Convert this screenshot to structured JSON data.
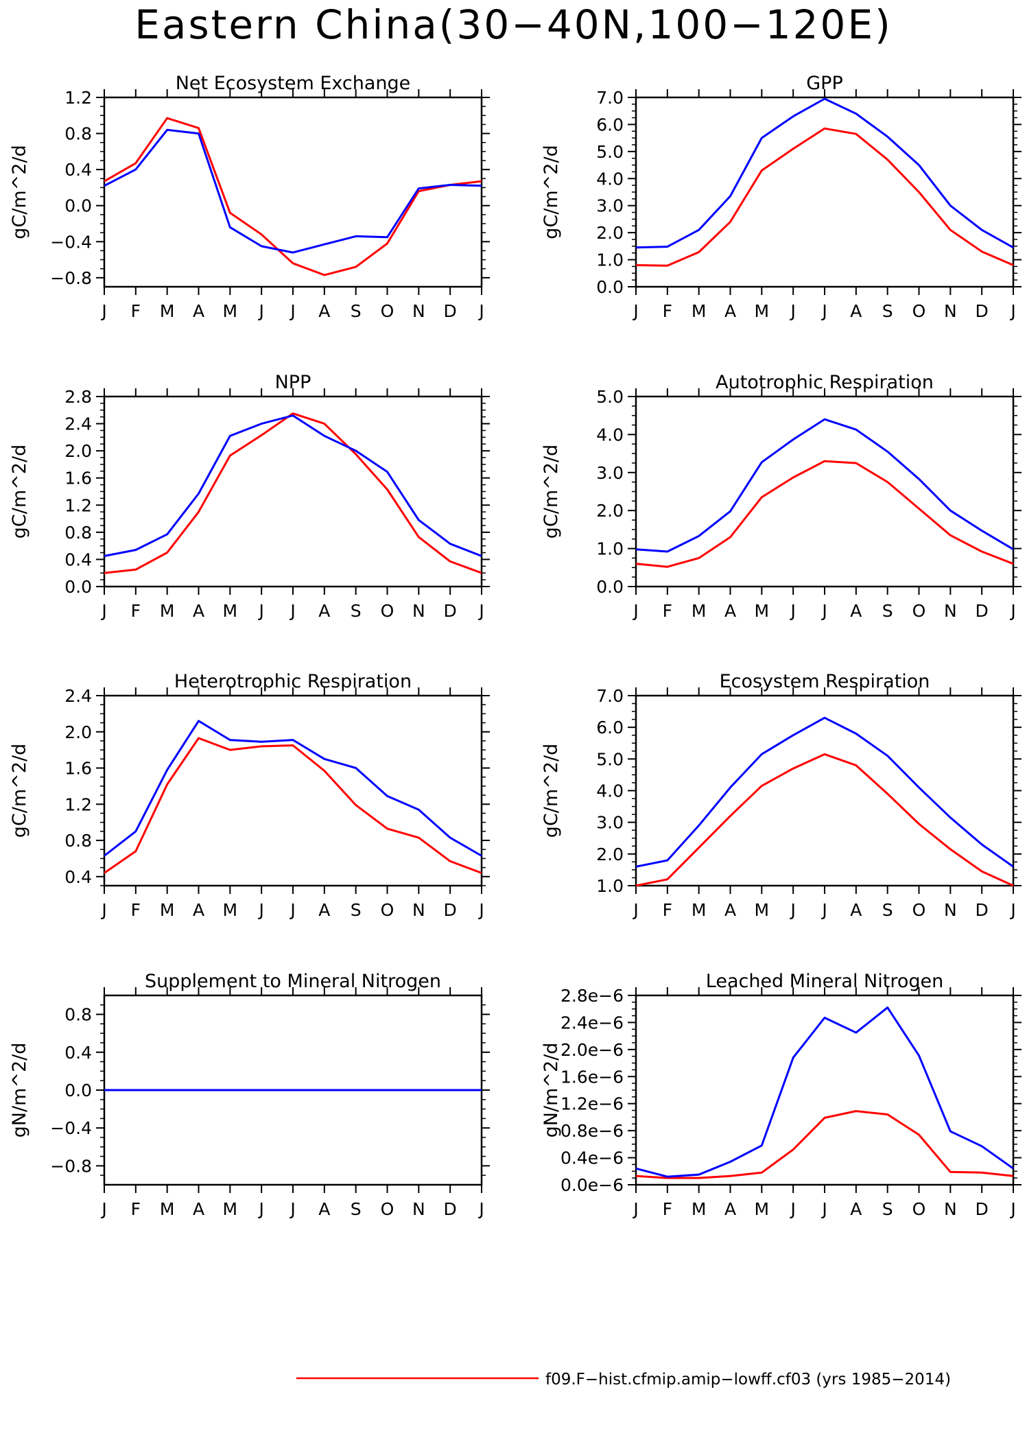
{
  "title": "Eastern China(30−40N,100−120E)",
  "legend": [
    {
      "label": "f09.F−hist.cfmip.amip−lowff.cf03 (yrs 1985−2014)",
      "color": "#ff0000"
    }
  ],
  "chart_data": [
    {
      "type": "line",
      "title": "Net Ecosystem Exchange",
      "ylabel": "gC/m^2/d",
      "categories": [
        "J",
        "F",
        "M",
        "A",
        "M",
        "J",
        "J",
        "A",
        "S",
        "O",
        "N",
        "D",
        "J"
      ],
      "ylim": [
        -0.9,
        1.2
      ],
      "yticks": [
        -0.8,
        -0.4,
        0.0,
        0.4,
        0.8,
        1.2
      ],
      "ytick_labels": [
        "−0.8",
        "−0.4",
        "0.0",
        "0.4",
        "0.8",
        "1.2"
      ],
      "series": [
        {
          "color": "#ff0000",
          "values": [
            0.27,
            0.47,
            0.97,
            0.86,
            -0.08,
            -0.32,
            -0.64,
            -0.77,
            -0.68,
            -0.42,
            0.16,
            0.23,
            0.27
          ]
        },
        {
          "color": "#0000ff",
          "values": [
            0.22,
            0.4,
            0.84,
            0.8,
            -0.24,
            -0.45,
            -0.52,
            -0.43,
            -0.34,
            -0.35,
            0.19,
            0.23,
            0.22
          ]
        }
      ]
    },
    {
      "type": "line",
      "title": "GPP",
      "ylabel": "gC/m^2/d",
      "categories": [
        "J",
        "F",
        "M",
        "A",
        "M",
        "J",
        "J",
        "A",
        "S",
        "O",
        "N",
        "D",
        "J"
      ],
      "ylim": [
        0.0,
        7.0
      ],
      "yticks": [
        0,
        1,
        2,
        3,
        4,
        5,
        6,
        7
      ],
      "ytick_labels": [
        "0.0",
        "1.0",
        "2.0",
        "3.0",
        "4.0",
        "5.0",
        "6.0",
        "7.0"
      ],
      "series": [
        {
          "color": "#ff0000",
          "values": [
            0.8,
            0.78,
            1.28,
            2.4,
            4.3,
            5.1,
            5.85,
            5.65,
            4.7,
            3.5,
            2.1,
            1.3,
            0.8
          ]
        },
        {
          "color": "#0000ff",
          "values": [
            1.45,
            1.48,
            2.1,
            3.35,
            5.5,
            6.3,
            6.95,
            6.4,
            5.55,
            4.5,
            3.0,
            2.1,
            1.45
          ]
        }
      ]
    },
    {
      "type": "line",
      "title": "NPP",
      "ylabel": "gC/m^2/d",
      "categories": [
        "J",
        "F",
        "M",
        "A",
        "M",
        "J",
        "J",
        "A",
        "S",
        "O",
        "N",
        "D",
        "J"
      ],
      "ylim": [
        0.0,
        2.8
      ],
      "yticks": [
        0.0,
        0.4,
        0.8,
        1.2,
        1.6,
        2.0,
        2.4,
        2.8
      ],
      "ytick_labels": [
        "0.0",
        "0.4",
        "0.8",
        "1.2",
        "1.6",
        "2.0",
        "2.4",
        "2.8"
      ],
      "series": [
        {
          "color": "#ff0000",
          "values": [
            0.2,
            0.25,
            0.5,
            1.1,
            1.93,
            2.23,
            2.55,
            2.4,
            1.95,
            1.43,
            0.73,
            0.37,
            0.2
          ]
        },
        {
          "color": "#0000ff",
          "values": [
            0.45,
            0.54,
            0.77,
            1.37,
            2.22,
            2.4,
            2.52,
            2.22,
            2.0,
            1.69,
            0.98,
            0.63,
            0.45
          ]
        }
      ]
    },
    {
      "type": "line",
      "title": "Autotrophic Respiration",
      "ylabel": "gC/m^2/d",
      "categories": [
        "J",
        "F",
        "M",
        "A",
        "M",
        "J",
        "J",
        "A",
        "S",
        "O",
        "N",
        "D",
        "J"
      ],
      "ylim": [
        0.0,
        5.0
      ],
      "yticks": [
        0,
        1,
        2,
        3,
        4,
        5
      ],
      "ytick_labels": [
        "0.0",
        "1.0",
        "2.0",
        "3.0",
        "4.0",
        "5.0"
      ],
      "series": [
        {
          "color": "#ff0000",
          "values": [
            0.6,
            0.52,
            0.75,
            1.3,
            2.35,
            2.87,
            3.3,
            3.25,
            2.75,
            2.05,
            1.35,
            0.92,
            0.6
          ]
        },
        {
          "color": "#0000ff",
          "values": [
            0.98,
            0.92,
            1.33,
            1.98,
            3.27,
            3.87,
            4.4,
            4.13,
            3.55,
            2.83,
            2.0,
            1.47,
            0.98
          ]
        }
      ]
    },
    {
      "type": "line",
      "title": "Heterotrophic Respiration",
      "ylabel": "gC/m^2/d",
      "categories": [
        "J",
        "F",
        "M",
        "A",
        "M",
        "J",
        "J",
        "A",
        "S",
        "O",
        "N",
        "D",
        "J"
      ],
      "ylim": [
        0.3,
        2.4
      ],
      "yticks": [
        0.4,
        0.8,
        1.2,
        1.6,
        2.0,
        2.4
      ],
      "ytick_labels": [
        "0.4",
        "0.8",
        "1.2",
        "1.6",
        "2.0",
        "2.4"
      ],
      "series": [
        {
          "color": "#ff0000",
          "values": [
            0.44,
            0.68,
            1.42,
            1.93,
            1.8,
            1.84,
            1.85,
            1.57,
            1.19,
            0.93,
            0.83,
            0.57,
            0.44
          ]
        },
        {
          "color": "#0000ff",
          "values": [
            0.63,
            0.9,
            1.58,
            2.12,
            1.91,
            1.89,
            1.91,
            1.7,
            1.6,
            1.29,
            1.14,
            0.83,
            0.63
          ]
        }
      ]
    },
    {
      "type": "line",
      "title": "Ecosystem Respiration",
      "ylabel": "gC/m^2/d",
      "categories": [
        "J",
        "F",
        "M",
        "A",
        "M",
        "J",
        "J",
        "A",
        "S",
        "O",
        "N",
        "D",
        "J"
      ],
      "ylim": [
        1.0,
        7.0
      ],
      "yticks": [
        1,
        2,
        3,
        4,
        5,
        6,
        7
      ],
      "ytick_labels": [
        "1.0",
        "2.0",
        "3.0",
        "4.0",
        "5.0",
        "6.0",
        "7.0"
      ],
      "series": [
        {
          "color": "#ff0000",
          "values": [
            1.0,
            1.2,
            2.2,
            3.2,
            4.15,
            4.7,
            5.15,
            4.8,
            3.9,
            2.95,
            2.15,
            1.45,
            1.0
          ]
        },
        {
          "color": "#0000ff",
          "values": [
            1.6,
            1.8,
            2.9,
            4.1,
            5.15,
            5.75,
            6.3,
            5.8,
            5.1,
            4.1,
            3.15,
            2.3,
            1.6
          ]
        }
      ]
    },
    {
      "type": "line",
      "title": "Supplement to Mineral Nitrogen",
      "ylabel": "gN/m^2/d",
      "categories": [
        "J",
        "F",
        "M",
        "A",
        "M",
        "J",
        "J",
        "A",
        "S",
        "O",
        "N",
        "D",
        "J"
      ],
      "ylim": [
        -1.0,
        1.0
      ],
      "yticks": [
        -0.8,
        -0.4,
        0.0,
        0.4,
        0.8
      ],
      "ytick_labels": [
        "−0.8",
        "−0.4",
        "0.0",
        "0.4",
        "0.8"
      ],
      "series": [
        {
          "color": "#ff0000",
          "values": [
            0,
            0,
            0,
            0,
            0,
            0,
            0,
            0,
            0,
            0,
            0,
            0,
            0
          ]
        },
        {
          "color": "#0000ff",
          "values": [
            0,
            0,
            0,
            0,
            0,
            0,
            0,
            0,
            0,
            0,
            0,
            0,
            0
          ]
        }
      ]
    },
    {
      "type": "line",
      "title": "Leached Mineral Nitrogen",
      "ylabel": "gN/m^2/d",
      "categories": [
        "J",
        "F",
        "M",
        "A",
        "M",
        "J",
        "J",
        "A",
        "S",
        "O",
        "N",
        "D",
        "J"
      ],
      "ylim": [
        0.0,
        2.8e-06
      ],
      "yticks": [
        0,
        4e-07,
        8e-07,
        1.2e-06,
        1.6e-06,
        2e-06,
        2.4e-06,
        2.8e-06
      ],
      "ytick_labels": [
        "0.0e−6",
        "0.4e−6",
        "0.8e−6",
        "1.2e−6",
        "1.6e−6",
        "2.0e−6",
        "2.4e−6",
        "2.8e−6"
      ],
      "series": [
        {
          "color": "#ff0000",
          "values": [
            1.3e-07,
            1e-07,
            1e-07,
            1.3e-07,
            1.8e-07,
            5.2e-07,
            9.9e-07,
            1.09e-06,
            1.04e-06,
            7.4e-07,
            1.9e-07,
            1.8e-07,
            1.3e-07
          ]
        },
        {
          "color": "#0000ff",
          "values": [
            2.4e-07,
            1.2e-07,
            1.5e-07,
            3.4e-07,
            5.8e-07,
            1.88e-06,
            2.47e-06,
            2.25e-06,
            2.62e-06,
            1.91e-06,
            7.9e-07,
            5.7e-07,
            2.4e-07
          ]
        }
      ]
    }
  ]
}
